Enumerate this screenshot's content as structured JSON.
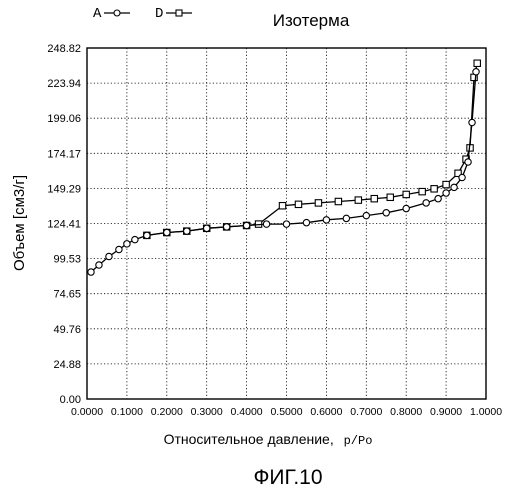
{
  "figure": {
    "caption": "ФИГ.10"
  },
  "chart_data": {
    "type": "line",
    "title": "Изотерма",
    "xlabel": "Относительное давление,",
    "xlabel_unit": "p/Po",
    "ylabel": "Объем [см3/г]",
    "xlim": [
      0,
      1.0
    ],
    "ylim": [
      0,
      248.82
    ],
    "x_ticks": [
      0,
      0.1,
      0.2,
      0.3,
      0.4,
      0.5,
      0.6,
      0.7,
      0.8,
      0.9,
      1.0
    ],
    "x_tick_labels": [
      "0.0000",
      "0.1000",
      "0.2000",
      "0.3000",
      "0.4000",
      "0.5000",
      "0.6000",
      "0.7000",
      "0.8000",
      "0.9000",
      "1.0000"
    ],
    "y_ticks": [
      0,
      24.88,
      49.76,
      74.65,
      99.53,
      124.41,
      149.29,
      174.17,
      199.06,
      223.94,
      248.82
    ],
    "y_tick_labels": [
      "0.00",
      "24.88",
      "49.76",
      "74.65",
      "99.53",
      "124.41",
      "149.29",
      "174.17",
      "199.06",
      "223.94",
      "248.82"
    ],
    "grid": true,
    "grid_style": "dotted",
    "legend_position": "top-left, above plot",
    "series": [
      {
        "name": "A",
        "marker": "circle",
        "x": [
          0.01,
          0.03,
          0.055,
          0.08,
          0.1,
          0.12,
          0.15,
          0.2,
          0.25,
          0.3,
          0.35,
          0.4,
          0.45,
          0.5,
          0.55,
          0.6,
          0.65,
          0.7,
          0.75,
          0.8,
          0.85,
          0.88,
          0.9,
          0.92,
          0.94,
          0.955,
          0.965,
          0.975
        ],
        "y": [
          90,
          95,
          101,
          106,
          110,
          113,
          116,
          118,
          119,
          121,
          122,
          123,
          124,
          124,
          125,
          127,
          128,
          130,
          132,
          135,
          139,
          142,
          146,
          150,
          157,
          168,
          196,
          232
        ]
      },
      {
        "name": "D",
        "marker": "square",
        "x": [
          0.15,
          0.2,
          0.25,
          0.3,
          0.35,
          0.4,
          0.43,
          0.49,
          0.53,
          0.58,
          0.63,
          0.68,
          0.72,
          0.76,
          0.8,
          0.84,
          0.87,
          0.9,
          0.93,
          0.95,
          0.96,
          0.97,
          0.978
        ],
        "y": [
          116,
          118,
          119,
          121,
          122,
          123,
          124,
          137,
          138,
          139,
          140,
          141,
          142,
          143,
          145,
          147,
          149,
          152,
          160,
          170,
          178,
          228,
          238
        ]
      }
    ]
  }
}
